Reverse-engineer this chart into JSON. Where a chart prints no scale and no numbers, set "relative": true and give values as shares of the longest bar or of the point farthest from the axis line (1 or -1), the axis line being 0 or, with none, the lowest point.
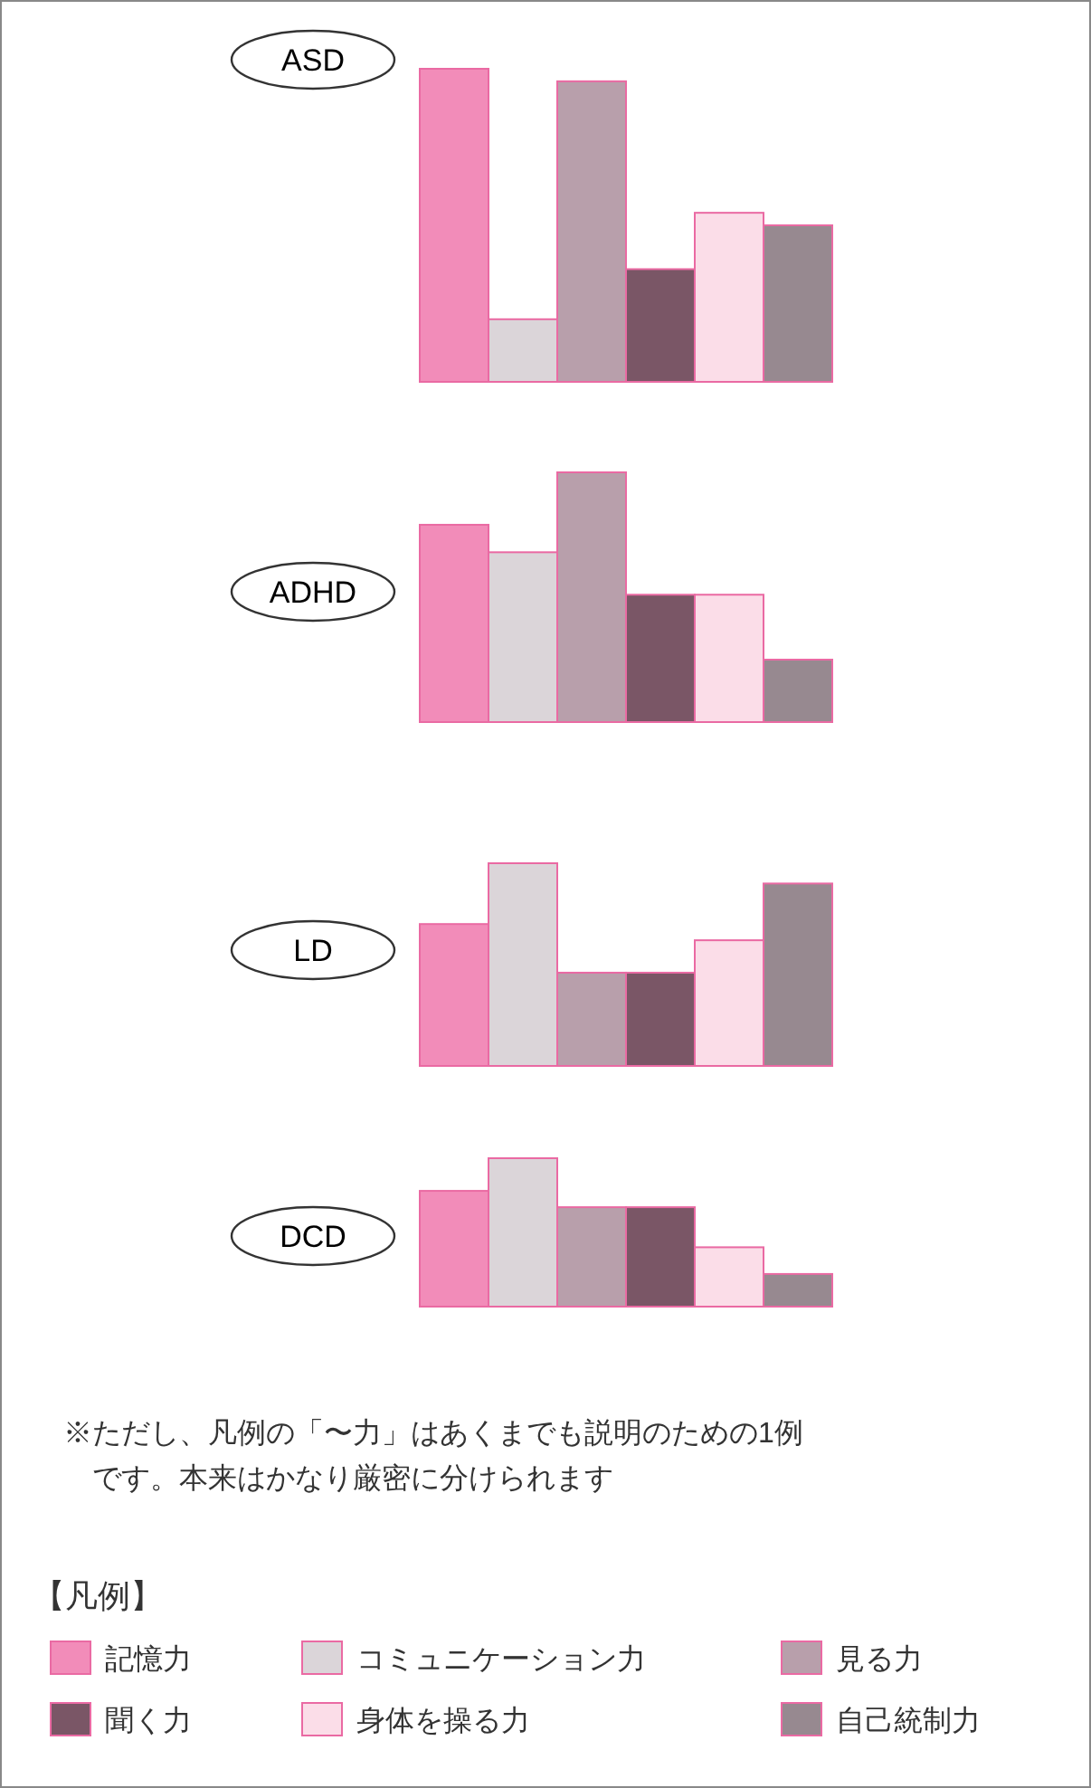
{
  "chart_data": [
    {
      "type": "bar",
      "title": "ASD",
      "relative": true,
      "categories": [
        null
      ],
      "series": [
        {
          "color": "#f28cb9",
          "values": [
            1.0
          ]
        },
        {
          "color": "#dbd5d9",
          "values": [
            0.2
          ]
        },
        {
          "color": "#b89fab",
          "values": [
            0.96
          ]
        },
        {
          "color": "#7a5666",
          "values": [
            0.36
          ]
        },
        {
          "color": "#fbdde8",
          "values": [
            0.54
          ]
        },
        {
          "color": "#978990",
          "values": [
            0.5
          ]
        }
      ]
    },
    {
      "type": "bar",
      "title": "ADHD",
      "relative": true,
      "categories": [
        null
      ],
      "series": [
        {
          "color": "#f28cb9",
          "values": [
            0.79
          ]
        },
        {
          "color": "#dbd5d9",
          "values": [
            0.68
          ]
        },
        {
          "color": "#b89fab",
          "values": [
            1.0
          ]
        },
        {
          "color": "#7a5666",
          "values": [
            0.51
          ]
        },
        {
          "color": "#fbdde8",
          "values": [
            0.51
          ]
        },
        {
          "color": "#978990",
          "values": [
            0.25
          ]
        }
      ]
    },
    {
      "type": "bar",
      "title": "LD",
      "relative": true,
      "categories": [
        null
      ],
      "series": [
        {
          "color": "#f28cb9",
          "values": [
            0.7
          ]
        },
        {
          "color": "#dbd5d9",
          "values": [
            1.0
          ]
        },
        {
          "color": "#b89fab",
          "values": [
            0.46
          ]
        },
        {
          "color": "#7a5666",
          "values": [
            0.46
          ]
        },
        {
          "color": "#fbdde8",
          "values": [
            0.62
          ]
        },
        {
          "color": "#978990",
          "values": [
            0.9
          ]
        }
      ]
    },
    {
      "type": "bar",
      "title": "DCD",
      "relative": true,
      "categories": [
        null
      ],
      "legend": "bottom",
      "legend_title": "【凡例】",
      "annotations": [
        "※ただし、凡例の「〜力」はあくまでも説明のための1例です。本来はかなり厳密に分けられます"
      ],
      "series": [
        {
          "name": "記憶力",
          "color": "#f28cb9",
          "values": [
            0.78
          ]
        },
        {
          "name": "コミュニケーション力",
          "color": "#dbd5d9",
          "values": [
            1.0
          ]
        },
        {
          "name": "見る力",
          "color": "#b89fab",
          "values": [
            0.67
          ]
        },
        {
          "name": "聞く力",
          "color": "#7a5666",
          "values": [
            0.67
          ]
        },
        {
          "name": "身体を操る力",
          "color": "#fbdde8",
          "values": [
            0.4
          ]
        },
        {
          "name": "自己統制力",
          "color": "#978990",
          "values": [
            0.22
          ]
        }
      ]
    }
  ]
}
